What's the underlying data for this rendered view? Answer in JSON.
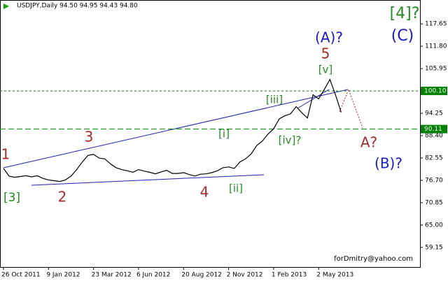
{
  "chart_data": {
    "type": "line",
    "title": "USDJPY,Daily  94.50 94.95 94.43 94.80",
    "footer": "forDmitry@yahoo.com",
    "color": "#000000",
    "categories": [
      "26 Oct 2011",
      null,
      null,
      null,
      null,
      null,
      null,
      null,
      "9 Jan 2012",
      null,
      null,
      null,
      null,
      null,
      null,
      null,
      "23 Mar 2012",
      null,
      null,
      null,
      null,
      null,
      null,
      null,
      "6 Jun 2012",
      null,
      null,
      null,
      null,
      null,
      null,
      null,
      "20 Aug 2012",
      null,
      null,
      null,
      null,
      null,
      null,
      null,
      "2 Nov 2012",
      null,
      null,
      null,
      null,
      null,
      null,
      null,
      "1 Feb 2013",
      null,
      null,
      null,
      null,
      null,
      null,
      null,
      "2 May 2013",
      null,
      null,
      null,
      null
    ],
    "values": [
      79.8,
      77.8,
      77.5,
      77.7,
      77.9,
      77.6,
      77.9,
      77.2,
      76.8,
      76.6,
      76.4,
      76.8,
      77.8,
      79.5,
      81.5,
      83.2,
      83.5,
      82.5,
      82.3,
      81.0,
      80.0,
      79.5,
      79.2,
      78.8,
      79.5,
      79.1,
      78.8,
      78.4,
      78.9,
      79.3,
      78.5,
      78.5,
      78.7,
      78.2,
      77.8,
      78.3,
      78.4,
      78.7,
      79.2,
      80.0,
      80.2,
      79.8,
      81.5,
      82.3,
      83.6,
      85.8,
      87.0,
      88.8,
      90.2,
      92.8,
      93.6,
      94.1,
      96.0,
      94.4,
      93.0,
      99.1,
      98.0,
      100.5,
      103.1,
      99.0,
      94.5
    ],
    "ylim": [
      54.0,
      123.9
    ],
    "yticks": [
      117.65,
      {
        "value": 111.8,
        "label": "111.80"
      },
      105.95,
      94.25,
      {
        "value": 88.4,
        "label": "88.40"
      },
      82.55,
      {
        "value": 76.7,
        "label": "76.70"
      },
      70.85,
      {
        "value": 65,
        "label": "65.00"
      },
      59.15
    ],
    "hlines": [
      {
        "value": 100.1,
        "label": "100.10"
      },
      90.11
    ],
    "hline_color": "#008000",
    "annotations": [
      {
        "text": "[4]?",
        "color": "#228b22"
      },
      {
        "text": "(C)",
        "color": "#1a1acc"
      },
      {
        "text": "(A)?",
        "color": "#1a1acc"
      },
      {
        "text": "5",
        "color": "#a52a2a"
      },
      {
        "text": "[v]",
        "color": "#228b22"
      },
      {
        "text": "[iii]",
        "color": "#228b22"
      },
      {
        "text": "[iv]?",
        "color": "#228b22"
      },
      {
        "text": "A?",
        "color": "#a52a2a"
      },
      {
        "text": "(B)?",
        "color": "#1a1acc"
      },
      {
        "text": "3",
        "color": "#a52a2a"
      },
      {
        "text": "1",
        "color": "#a52a2a"
      },
      {
        "text": "[i]",
        "color": "#228b22"
      },
      {
        "text": "[ii]",
        "color": "#228b22"
      },
      {
        "text": "4",
        "color": "#a52a2a"
      },
      {
        "text": "[3]",
        "color": "#228b22"
      },
      {
        "text": "2",
        "color": "#a52a2a"
      }
    ]
  }
}
